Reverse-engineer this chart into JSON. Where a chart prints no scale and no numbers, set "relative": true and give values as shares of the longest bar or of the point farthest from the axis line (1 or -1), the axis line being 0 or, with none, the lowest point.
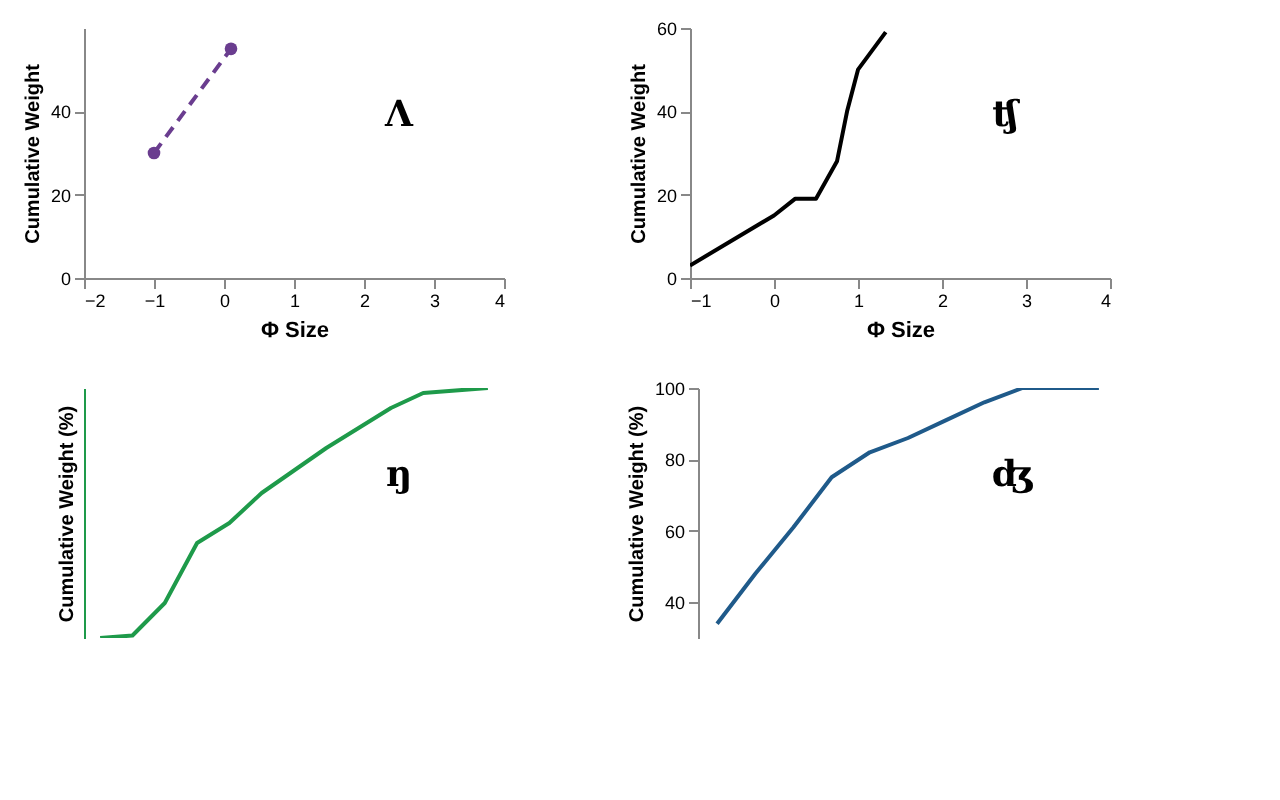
{
  "chart_data": [
    {
      "type": "line",
      "xlabel": "Φ Size",
      "ylabel": "Cumulative Weight",
      "annotations": [
        "Λ"
      ],
      "x": [
        -1,
        0.1
      ],
      "xlim": [
        -2,
        4
      ],
      "xticks": [
        -2,
        -1,
        0,
        1,
        2,
        3,
        4
      ],
      "ylim": [
        0,
        60
      ],
      "yticks": [
        0,
        20,
        40
      ],
      "marker": "circle",
      "line_style": "dashed",
      "series": [
        {
          "color": "#6a3d8f",
          "values": [
            30,
            55
          ]
        }
      ]
    },
    {
      "type": "line",
      "xlabel": "Φ Size",
      "ylabel": "Cumulative Weight",
      "annotations": [
        "ʧ"
      ],
      "x": [
        -1,
        0,
        0.25,
        0.5,
        0.75,
        0.87,
        1,
        1.33
      ],
      "xlim": [
        -1,
        4
      ],
      "xticks": [
        -1,
        0,
        1,
        2,
        3,
        4
      ],
      "ylim": [
        0,
        60
      ],
      "yticks": [
        0,
        20,
        40,
        60
      ],
      "series": [
        {
          "color": "#000000",
          "values": [
            3,
            15,
            19,
            19,
            28,
            40,
            50,
            59
          ]
        }
      ]
    },
    {
      "type": "line",
      "ylabel": "Cumulative Weight (%)",
      "annotations": [
        "ŋ"
      ],
      "relative": true,
      "categories": [
        null,
        null,
        null,
        null,
        null,
        null,
        null,
        null,
        null,
        null,
        null,
        null,
        null
      ],
      "series": [
        {
          "color": "#1e9a4a",
          "values": [
            0,
            0.01,
            0.14,
            0.38,
            0.46,
            0.58,
            0.67,
            0.76,
            0.84,
            0.92,
            0.98,
            0.99,
            1
          ]
        }
      ]
    },
    {
      "type": "line",
      "ylabel": "Cumulative Weight (%)",
      "annotations": [
        "ʤ"
      ],
      "categories": [
        null,
        null,
        null,
        null,
        null,
        null,
        null,
        null,
        null,
        null,
        null
      ],
      "ylim": [
        30,
        100
      ],
      "yticks": [
        40,
        60,
        80,
        100
      ],
      "series": [
        {
          "color": "#1f5a8a",
          "values": [
            34,
            48,
            61,
            75,
            82,
            86,
            91,
            96,
            100,
            100,
            100
          ]
        }
      ]
    }
  ]
}
